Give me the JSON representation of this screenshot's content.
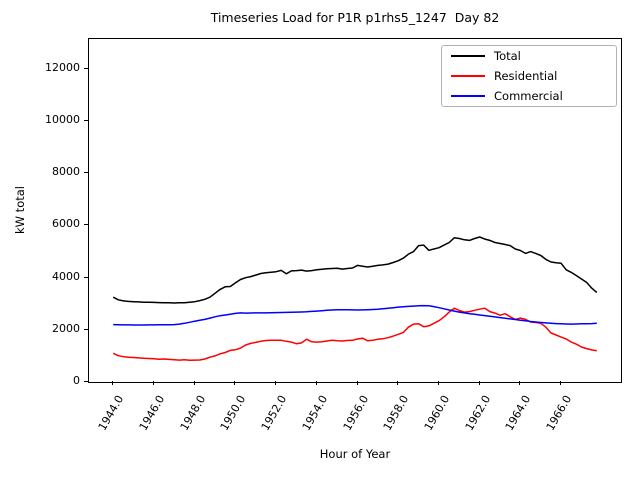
{
  "title": "Timeseries Load for P1R p1rhs5_1247  Day 82",
  "axes": {
    "xlabel": "Hour of Year",
    "ylabel": "kW total"
  },
  "legend": {
    "entries": [
      "Total",
      "Residential",
      "Commercial"
    ]
  },
  "chart_data": {
    "type": "line",
    "title": "Timeseries Load for P1R p1rhs5_1247  Day 82",
    "xlabel": "Hour of Year",
    "ylabel": "kW total",
    "xlim": [
      1942.81,
      1968.94
    ],
    "ylim": [
      0,
      13150
    ],
    "grid": false,
    "legend_position": "upper right",
    "x_ticks": [
      1944.0,
      1946.0,
      1948.0,
      1950.0,
      1952.0,
      1954.0,
      1956.0,
      1958.0,
      1960.0,
      1962.0,
      1964.0,
      1966.0
    ],
    "x_tick_labels": [
      "1944.0",
      "1946.0",
      "1948.0",
      "1950.0",
      "1952.0",
      "1954.0",
      "1956.0",
      "1958.0",
      "1960.0",
      "1962.0",
      "1964.0",
      "1966.0"
    ],
    "y_ticks": [
      0,
      2000,
      4000,
      6000,
      8000,
      10000,
      12000
    ],
    "y_tick_labels": [
      "0",
      "2000",
      "4000",
      "6000",
      "8000",
      "10000",
      "12000"
    ],
    "x": [
      1944.0,
      1944.25,
      1944.5,
      1944.75,
      1945.0,
      1945.25,
      1945.5,
      1945.75,
      1946.0,
      1946.25,
      1946.5,
      1946.75,
      1947.0,
      1947.25,
      1947.5,
      1947.75,
      1948.0,
      1948.25,
      1948.5,
      1948.75,
      1949.0,
      1949.25,
      1949.5,
      1949.75,
      1950.0,
      1950.25,
      1950.5,
      1950.75,
      1951.0,
      1951.25,
      1951.5,
      1951.75,
      1952.0,
      1952.25,
      1952.5,
      1952.75,
      1953.0,
      1953.25,
      1953.5,
      1953.75,
      1954.0,
      1954.25,
      1954.5,
      1954.75,
      1955.0,
      1955.25,
      1955.5,
      1955.75,
      1956.0,
      1956.25,
      1956.5,
      1956.75,
      1957.0,
      1957.25,
      1957.5,
      1957.75,
      1958.0,
      1958.25,
      1958.5,
      1958.75,
      1959.0,
      1959.25,
      1959.5,
      1959.75,
      1960.0,
      1960.25,
      1960.5,
      1960.75,
      1961.0,
      1961.25,
      1961.5,
      1961.75,
      1962.0,
      1962.25,
      1962.5,
      1962.75,
      1963.0,
      1963.25,
      1963.5,
      1963.75,
      1964.0,
      1964.25,
      1964.5,
      1964.75,
      1965.0,
      1965.25,
      1965.5,
      1965.75,
      1966.0,
      1966.25,
      1966.5,
      1966.75,
      1967.0,
      1967.25,
      1967.5,
      1967.75
    ],
    "series": [
      {
        "name": "Total",
        "color": "#000000",
        "values": [
          3250,
          3150,
          3110,
          3090,
          3080,
          3070,
          3060,
          3055,
          3050,
          3045,
          3040,
          3035,
          3030,
          3035,
          3040,
          3060,
          3080,
          3120,
          3170,
          3250,
          3400,
          3550,
          3650,
          3660,
          3800,
          3930,
          4000,
          4040,
          4100,
          4160,
          4190,
          4210,
          4230,
          4280,
          4150,
          4260,
          4270,
          4290,
          4250,
          4270,
          4300,
          4320,
          4340,
          4350,
          4360,
          4330,
          4350,
          4370,
          4470,
          4440,
          4410,
          4440,
          4470,
          4490,
          4520,
          4580,
          4650,
          4750,
          4900,
          5000,
          5230,
          5250,
          5050,
          5100,
          5150,
          5250,
          5350,
          5530,
          5500,
          5450,
          5430,
          5500,
          5560,
          5480,
          5430,
          5350,
          5310,
          5270,
          5230,
          5100,
          5040,
          4930,
          5000,
          4930,
          4850,
          4700,
          4600,
          4570,
          4550,
          4300,
          4200,
          4080,
          3950,
          3820,
          3600,
          3430
        ]
      },
      {
        "name": "Residential",
        "color": "#ff0000",
        "values": [
          1100,
          1010,
          970,
          950,
          940,
          925,
          910,
          900,
          890,
          870,
          880,
          865,
          855,
          840,
          850,
          835,
          840,
          845,
          880,
          950,
          1000,
          1080,
          1130,
          1210,
          1240,
          1300,
          1420,
          1480,
          1520,
          1560,
          1590,
          1600,
          1600,
          1600,
          1560,
          1530,
          1470,
          1500,
          1640,
          1540,
          1530,
          1540,
          1570,
          1600,
          1580,
          1570,
          1590,
          1600,
          1650,
          1680,
          1580,
          1600,
          1640,
          1660,
          1700,
          1760,
          1830,
          1900,
          2100,
          2220,
          2230,
          2120,
          2150,
          2250,
          2350,
          2500,
          2680,
          2830,
          2740,
          2680,
          2700,
          2750,
          2790,
          2830,
          2700,
          2640,
          2560,
          2620,
          2500,
          2400,
          2450,
          2400,
          2300,
          2280,
          2250,
          2100,
          1880,
          1800,
          1720,
          1650,
          1530,
          1450,
          1340,
          1280,
          1230,
          1200
        ]
      },
      {
        "name": "Commercial",
        "color": "#0000ff",
        "values": [
          2200,
          2195,
          2190,
          2188,
          2185,
          2185,
          2185,
          2188,
          2190,
          2192,
          2195,
          2198,
          2200,
          2220,
          2250,
          2290,
          2330,
          2365,
          2400,
          2450,
          2500,
          2540,
          2570,
          2600,
          2630,
          2650,
          2640,
          2645,
          2650,
          2650,
          2650,
          2655,
          2660,
          2665,
          2670,
          2675,
          2680,
          2685,
          2690,
          2705,
          2720,
          2735,
          2750,
          2760,
          2770,
          2770,
          2770,
          2765,
          2760,
          2765,
          2770,
          2780,
          2790,
          2810,
          2830,
          2850,
          2870,
          2885,
          2900,
          2910,
          2920,
          2930,
          2920,
          2890,
          2850,
          2805,
          2760,
          2720,
          2680,
          2650,
          2620,
          2595,
          2570,
          2545,
          2520,
          2495,
          2470,
          2445,
          2420,
          2395,
          2370,
          2345,
          2320,
          2300,
          2280,
          2265,
          2250,
          2240,
          2230,
          2225,
          2220,
          2225,
          2230,
          2235,
          2240,
          2250
        ]
      }
    ]
  }
}
